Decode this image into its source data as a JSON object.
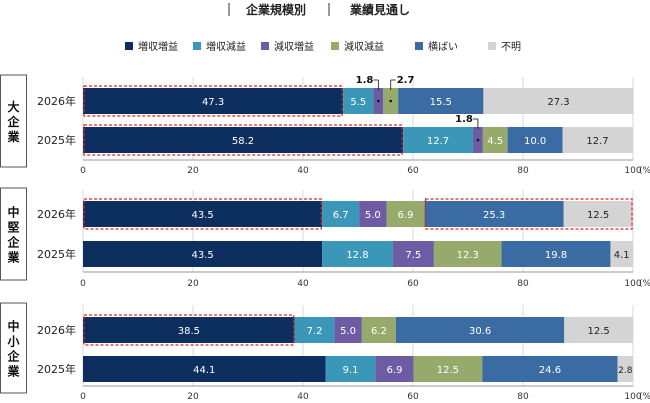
{
  "header": {
    "left": "企業規模別",
    "right": "業績見通し"
  },
  "legend": [
    {
      "label": "増収増益",
      "color": "#0d2f5f"
    },
    {
      "label": "増収減益",
      "color": "#3a97b8"
    },
    {
      "label": "減収増益",
      "color": "#6d5ba4"
    },
    {
      "label": "減収減益",
      "color": "#96ab6b"
    },
    {
      "label": "横ばい",
      "color": "#3b6ba3"
    },
    {
      "label": "不明",
      "color": "#d4d4d4"
    }
  ],
  "axis": {
    "ticks": [
      "0",
      "20",
      "40",
      "60",
      "80",
      "100"
    ],
    "unit": "(%)"
  },
  "chart_data": {
    "type": "bar",
    "stacked": true,
    "orientation": "horizontal",
    "xlim": [
      0,
      100
    ],
    "categories_legend": [
      "増収増益",
      "増収減益",
      "減収増益",
      "減収減益",
      "横ばい",
      "不明"
    ],
    "groups": [
      {
        "name": "大企業",
        "rows": [
          {
            "label": "2026年",
            "values": [
              47.3,
              5.5,
              1.8,
              2.7,
              15.5,
              27.3
            ],
            "labels": [
              "47.3",
              "5.5",
              "1.8",
              "2.7",
              "15.5",
              "27.3"
            ],
            "highlight": [
              0
            ]
          },
          {
            "label": "2025年",
            "values": [
              58.2,
              12.7,
              1.8,
              4.5,
              10.0,
              12.7
            ],
            "labels": [
              "58.2",
              "12.7",
              "1.8",
              "4.5",
              "10.0",
              "12.7"
            ],
            "highlight": [
              0
            ]
          }
        ]
      },
      {
        "name": "中堅企業",
        "rows": [
          {
            "label": "2026年",
            "values": [
              43.5,
              6.7,
              5.0,
              6.9,
              25.3,
              12.5
            ],
            "labels": [
              "43.5",
              "6.7",
              "5.0",
              "6.9",
              "25.3",
              "12.5"
            ],
            "highlight": [
              0,
              4
            ]
          },
          {
            "label": "2025年",
            "values": [
              43.5,
              12.8,
              7.5,
              12.3,
              19.8,
              4.1
            ],
            "labels": [
              "43.5",
              "12.8",
              "7.5",
              "12.3",
              "19.8",
              "4.1"
            ],
            "highlight": []
          }
        ]
      },
      {
        "name": "中小企業",
        "rows": [
          {
            "label": "2026年",
            "values": [
              38.5,
              7.2,
              5.0,
              6.2,
              30.6,
              12.5
            ],
            "labels": [
              "38.5",
              "7.2",
              "5.0",
              "6.2",
              "30.6",
              "12.5"
            ],
            "highlight": [
              0
            ]
          },
          {
            "label": "2025年",
            "values": [
              44.1,
              9.1,
              6.9,
              12.5,
              24.6,
              2.8
            ],
            "labels": [
              "44.1",
              "9.1",
              "6.9",
              "12.5",
              "24.6",
              "2.8"
            ],
            "highlight": []
          }
        ]
      }
    ]
  }
}
